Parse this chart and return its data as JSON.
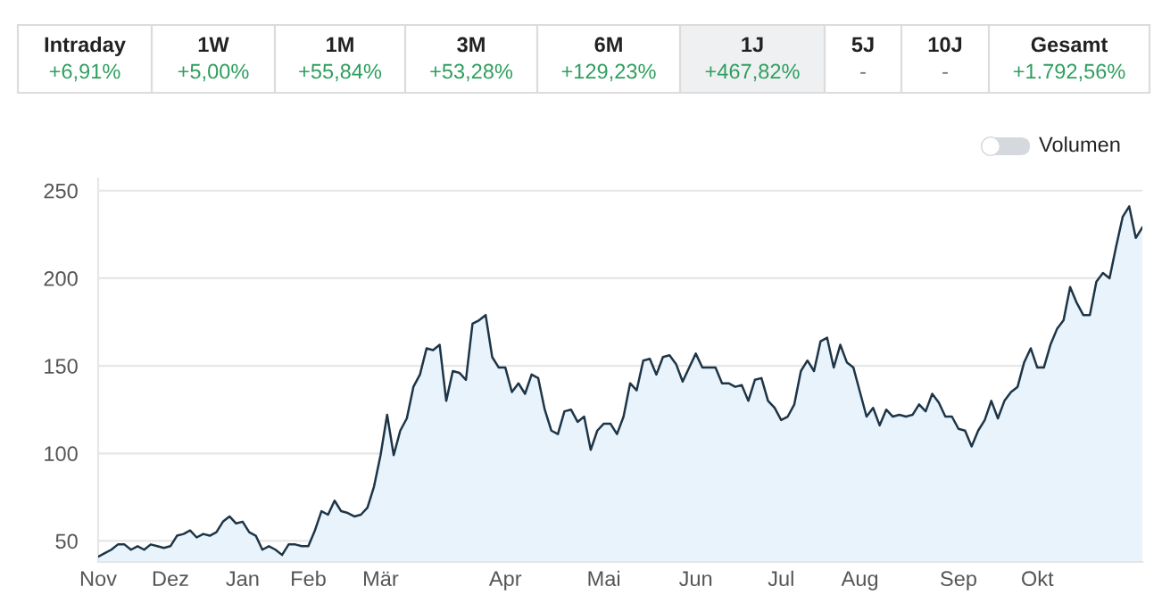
{
  "chart_data": {
    "type": "area",
    "categories": [
      "Nov",
      null,
      null,
      null,
      null,
      null,
      null,
      null,
      null,
      null,
      null,
      "Dez",
      null,
      null,
      null,
      null,
      null,
      null,
      null,
      null,
      null,
      null,
      "Jan",
      null,
      null,
      null,
      null,
      null,
      null,
      null,
      null,
      null,
      "Feb",
      null,
      null,
      null,
      null,
      null,
      null,
      null,
      null,
      null,
      null,
      "Mär",
      null,
      null,
      null,
      null,
      null,
      null,
      null,
      null,
      null,
      null,
      null,
      null,
      null,
      null,
      null,
      null,
      null,
      null,
      "Apr",
      null,
      null,
      null,
      null,
      null,
      null,
      null,
      null,
      null,
      null,
      null,
      null,
      null,
      null,
      "Mai",
      null,
      null,
      null,
      null,
      null,
      null,
      null,
      null,
      null,
      null,
      null,
      null,
      null,
      "Jun",
      null,
      null,
      null,
      null,
      null,
      null,
      null,
      null,
      null,
      null,
      null,
      null,
      "Jul",
      null,
      null,
      null,
      null,
      null,
      null,
      null,
      null,
      null,
      null,
      null,
      "Aug",
      null,
      null,
      null,
      null,
      null,
      null,
      null,
      null,
      null,
      null,
      null,
      null,
      null,
      null,
      "Sep",
      null,
      null,
      null,
      null,
      null,
      null,
      null,
      null,
      null,
      null,
      null,
      "Okt",
      null,
      null,
      null,
      null,
      null,
      null,
      null,
      null,
      null,
      null,
      null,
      null,
      null,
      null,
      null,
      null
    ],
    "series": [
      {
        "color": "#1d3547",
        "values": [
          41,
          43,
          45,
          48,
          48,
          45,
          47,
          45,
          48,
          47,
          46,
          47,
          53,
          54,
          56,
          52,
          54,
          53,
          55,
          61,
          64,
          60,
          61,
          55,
          53,
          45,
          47,
          45,
          42,
          48,
          48,
          47,
          47,
          56,
          67,
          65,
          73,
          67,
          66,
          64,
          65,
          69,
          81,
          99,
          122,
          99,
          113,
          120,
          138,
          145,
          160,
          159,
          162,
          130,
          147,
          146,
          142,
          174,
          176,
          179,
          155,
          149,
          149,
          135,
          140,
          134,
          145,
          143,
          125,
          113,
          111,
          124,
          125,
          118,
          121,
          102,
          113,
          117,
          117,
          111,
          121,
          140,
          136,
          153,
          154,
          145,
          155,
          156,
          151,
          141,
          149,
          157,
          149,
          149,
          149,
          140,
          140,
          138,
          139,
          130,
          142,
          143,
          130,
          126,
          119,
          121,
          128,
          147,
          153,
          147,
          164,
          166,
          149,
          162,
          152,
          149,
          135,
          121,
          126,
          116,
          125,
          121,
          122,
          121,
          122,
          128,
          124,
          134,
          129,
          121,
          121,
          114,
          113,
          104,
          113,
          119,
          130,
          120,
          130,
          135,
          138,
          152,
          160,
          149,
          149,
          162,
          171,
          176,
          195,
          186,
          179,
          179,
          198,
          203,
          200,
          218,
          235,
          241,
          223,
          229
        ]
      }
    ],
    "ylim": [
      38,
      257
    ],
    "yticks": [
      50,
      100,
      150,
      200,
      250
    ],
    "grid": "y",
    "legend": false,
    "annotations": [
      "Intraday",
      "+6,91%",
      "1W",
      "+5,00%",
      "1M",
      "+55,84%",
      "3M",
      "+53,28%",
      "6M",
      "+129,23%",
      "1J",
      "+467,82%",
      "5J",
      "-",
      "10J",
      "-",
      "Gesamt",
      "+1.792,56%",
      "Volumen"
    ]
  }
}
